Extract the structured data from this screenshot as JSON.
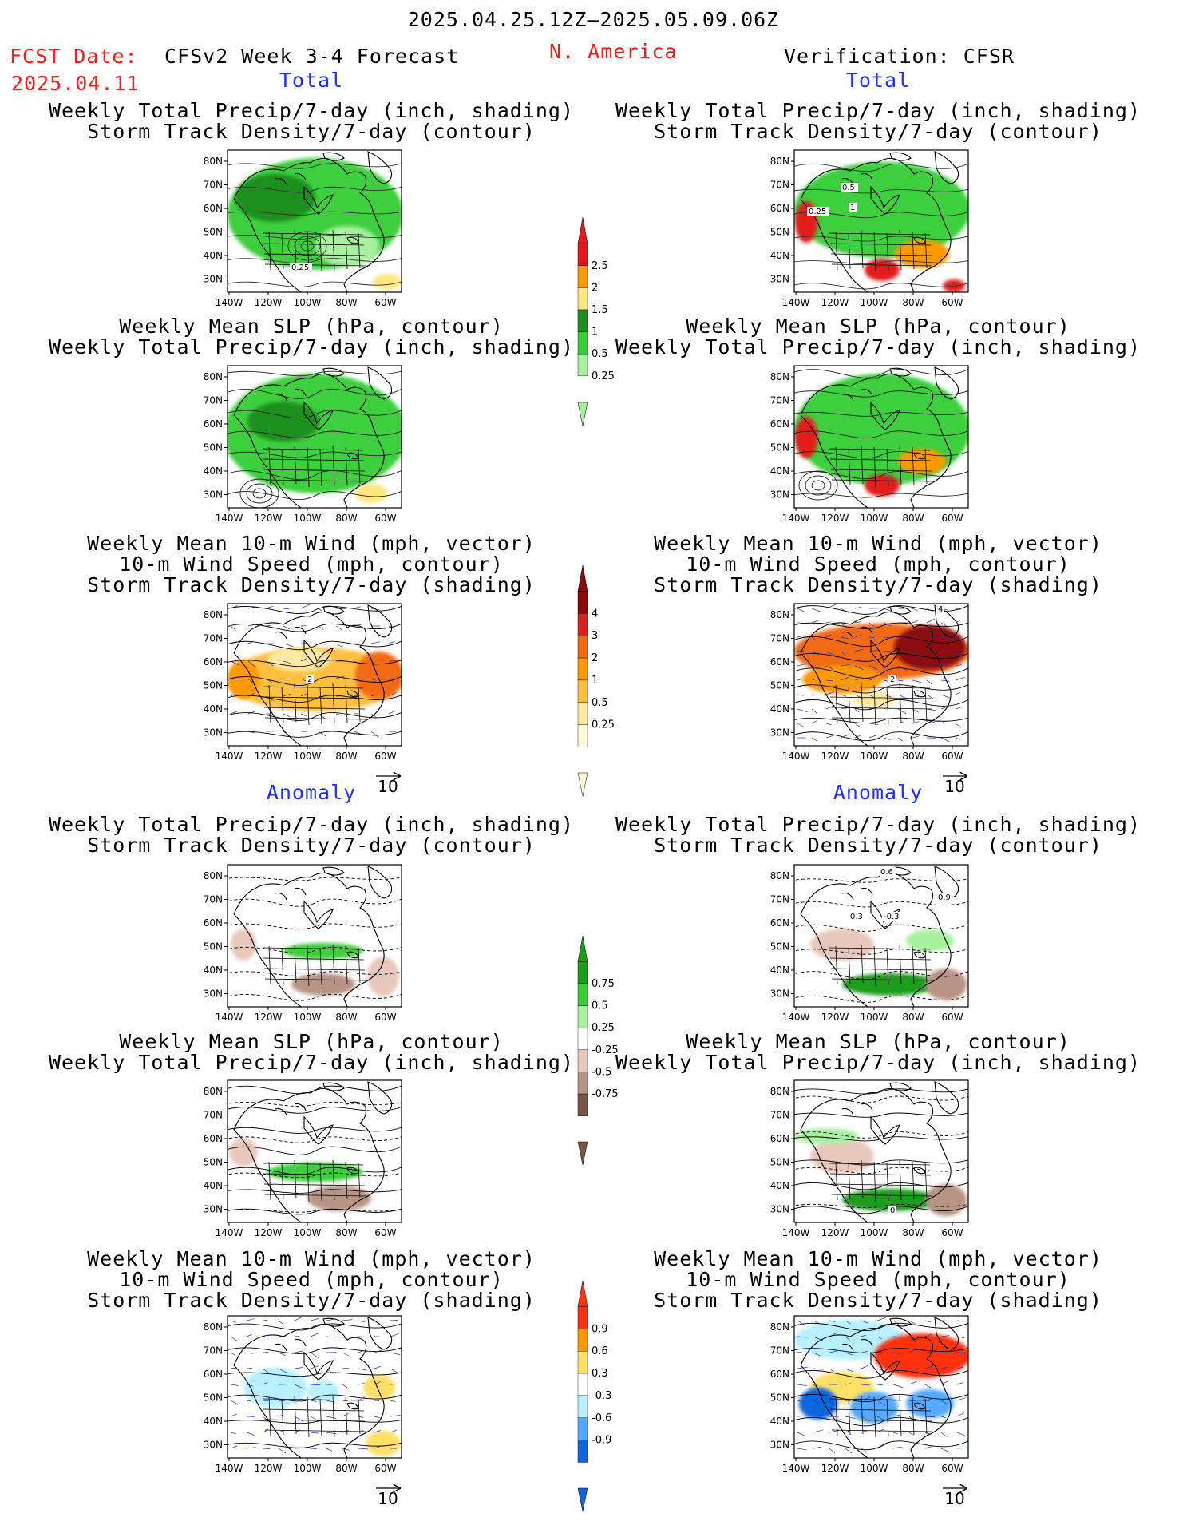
{
  "header": {
    "valid_period": "2025.04.25.12Z–2025.05.09.06Z",
    "fcst_label": "FCST Date:",
    "fcst_date": "2025.04.11",
    "forecast_name": "CFSv2 Week 3-4 Forecast",
    "region": "N. America",
    "verification": "Verification: CFSR"
  },
  "sections": {
    "total": "Total",
    "anomaly": "Anomaly"
  },
  "titles": {
    "precip": [
      "Weekly Total Precip/7-day (inch, shading)",
      "Storm Track Density/7-day (contour)"
    ],
    "slp": [
      "Weekly Mean SLP (hPa, contour)",
      "Weekly Total Precip/7-day (inch, shading)"
    ],
    "wind": [
      "Weekly Mean 10-m Wind (mph, vector)",
      "10-m Wind Speed (mph, contour)",
      "Storm Track Density/7-day (shading)"
    ]
  },
  "axes": {
    "lat": [
      "80N",
      "70N",
      "60N",
      "50N",
      "40N",
      "30N"
    ],
    "lon": [
      "140W",
      "120W",
      "100W",
      "80W",
      "60W"
    ]
  },
  "vector_ref": "10",
  "contour_labels": {
    "fc_total_precip": [
      "0.25"
    ],
    "ver_total_precip": [
      "0.5",
      "0.25",
      "1"
    ],
    "fc_total_wind": [
      "2"
    ],
    "ver_total_wind": [
      "2",
      "4"
    ],
    "ver_anom_precip": [
      "0.6",
      "0.9",
      "0.3",
      "-0.3"
    ],
    "ver_anom_slp": [
      "0"
    ]
  },
  "colorbars": {
    "precip_total": {
      "labels": [
        "2.5",
        "2",
        "1.5",
        "1",
        "0.5",
        "0.25"
      ],
      "colors": [
        "#e31a1c",
        "#ff9900",
        "#ffe680",
        "#1f8f1f",
        "#3ccf3c",
        "#a8f0a0"
      ]
    },
    "storm_total": {
      "labels": [
        "4",
        "3",
        "2",
        "1",
        "0.5",
        "0.25"
      ],
      "colors": [
        "#8b0a0a",
        "#d8221e",
        "#f26b14",
        "#ff9900",
        "#ffbf40",
        "#ffe9a0",
        "#fffbd8"
      ]
    },
    "precip_anom": {
      "labels": [
        "0.75",
        "0.5",
        "0.25",
        "-0.25",
        "-0.5",
        "-0.75"
      ],
      "colors": [
        "#1a9e1a",
        "#3ccf3c",
        "#a8f0a0",
        "#ffffff",
        "#e8c8bc",
        "#b89484",
        "#7a5446"
      ]
    },
    "storm_anom": {
      "labels": [
        "0.9",
        "0.6",
        "0.3",
        "-0.3",
        "-0.6",
        "-0.9"
      ],
      "colors": [
        "#ff3311",
        "#ff9900",
        "#ffe066",
        "#ffffff",
        "#b8f0ff",
        "#55aaff",
        "#1166dd"
      ]
    }
  },
  "colors": {
    "title_red": "#ff1a1a",
    "section_blue": "#1f2fff"
  }
}
